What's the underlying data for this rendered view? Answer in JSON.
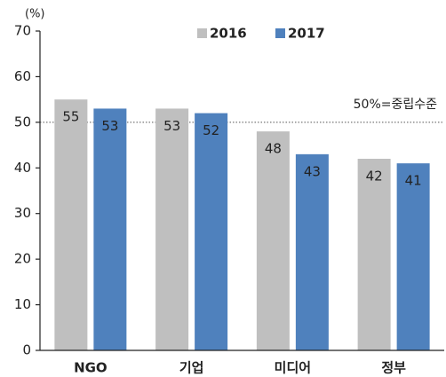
{
  "chart_data": {
    "type": "bar",
    "y_axis_label": "(%)",
    "categories": [
      "NGO",
      "기업",
      "미디어",
      "정부"
    ],
    "series": [
      {
        "name": "2016",
        "color": "#bfbfbf",
        "values": [
          55,
          53,
          48,
          42
        ]
      },
      {
        "name": "2017",
        "color": "#4f81bd",
        "values": [
          53,
          52,
          43,
          41
        ]
      }
    ],
    "ylim": [
      0,
      70
    ],
    "yticks": [
      0,
      10,
      20,
      30,
      40,
      50,
      60,
      70
    ],
    "annotation": {
      "text": "50%=중립수준",
      "value": 50
    },
    "legend": "top"
  }
}
